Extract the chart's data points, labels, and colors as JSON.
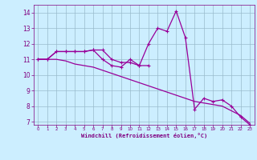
{
  "x": [
    0,
    1,
    2,
    3,
    4,
    5,
    6,
    7,
    8,
    9,
    10,
    11,
    12,
    13,
    14,
    15,
    16,
    17,
    18,
    19,
    20,
    21,
    22,
    23
  ],
  "line1": [
    11.0,
    11.0,
    11.5,
    11.5,
    11.5,
    11.5,
    11.6,
    11.6,
    11.0,
    10.8,
    10.8,
    10.6,
    10.6,
    null,
    null,
    null,
    null,
    null,
    null,
    null,
    null,
    null,
    null,
    null
  ],
  "line2": [
    11.0,
    11.0,
    11.5,
    11.5,
    11.5,
    11.5,
    11.6,
    11.0,
    10.6,
    10.5,
    11.0,
    10.6,
    12.0,
    13.0,
    12.8,
    14.1,
    12.4,
    7.8,
    8.5,
    8.3,
    8.4,
    8.0,
    7.3,
    6.8
  ],
  "line3": [
    11.0,
    11.0,
    11.0,
    10.9,
    10.7,
    10.6,
    10.5,
    10.3,
    10.1,
    9.9,
    9.7,
    9.5,
    9.3,
    9.1,
    8.9,
    8.7,
    8.5,
    8.3,
    8.2,
    8.1,
    8.0,
    7.7,
    7.4,
    6.9
  ],
  "xlim": [
    -0.5,
    23.5
  ],
  "ylim": [
    6.8,
    14.5
  ],
  "yticks": [
    7,
    8,
    9,
    10,
    11,
    12,
    13,
    14
  ],
  "xticks": [
    0,
    1,
    2,
    3,
    4,
    5,
    6,
    7,
    8,
    9,
    10,
    11,
    12,
    13,
    14,
    15,
    16,
    17,
    18,
    19,
    20,
    21,
    22,
    23
  ],
  "line_color": "#990099",
  "bg_color": "#cceeff",
  "grid_color": "#99bbcc",
  "xlabel": "Windchill (Refroidissement éolien,°C)",
  "xlabel_color": "#800080",
  "tick_color": "#800080",
  "marker": "+",
  "marker_size": 3.5,
  "linewidth": 0.9
}
